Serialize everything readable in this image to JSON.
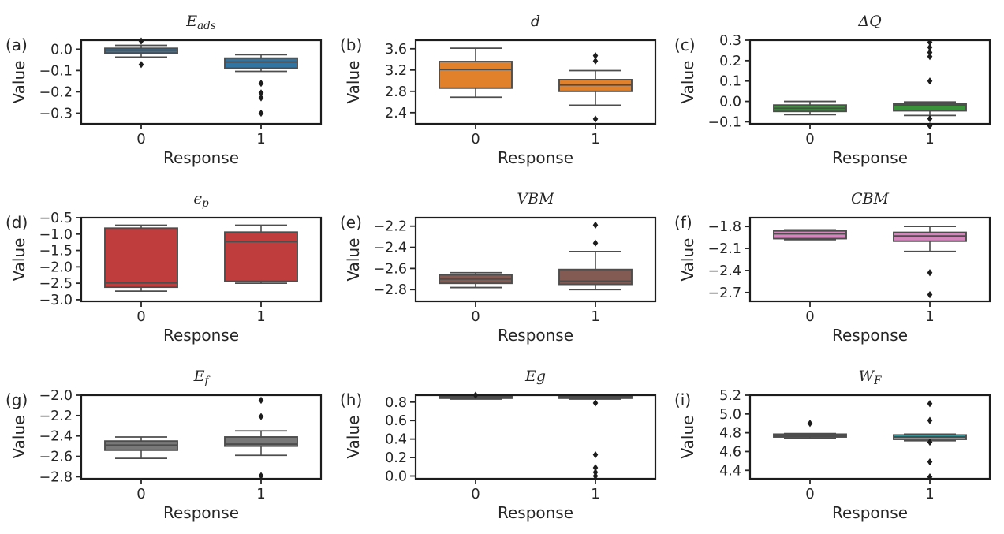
{
  "figure": {
    "ylabel": "Value",
    "xlabel": "Response",
    "categories": [
      "0",
      "1"
    ],
    "colors": {
      "spine": "#1c1c1c",
      "tick": "#262626",
      "box_edge": "#4d4d4d",
      "whisker": "#4d4d4d",
      "outlier": "#1c1c1c",
      "background": "#ffffff"
    }
  },
  "chart_data": [
    {
      "type": "box",
      "panel": "(a)",
      "title": {
        "main": "E",
        "sub": "ads"
      },
      "color": "#3274a1",
      "ylim": [
        -0.35,
        0.042
      ],
      "yticks": [
        0.0,
        -0.1,
        -0.2,
        -0.3
      ],
      "ytick_labels": [
        "0.0",
        "−0.1",
        "−0.2",
        "−0.3"
      ],
      "boxes": [
        {
          "category": "0",
          "whisker_low": -0.037,
          "q1": -0.018,
          "median": -0.005,
          "q3": 0.004,
          "whisker_high": 0.018,
          "outliers": [
            0.038,
            -0.072
          ]
        },
        {
          "category": "1",
          "whisker_low": -0.104,
          "q1": -0.089,
          "median": -0.06,
          "q3": -0.042,
          "whisker_high": -0.026,
          "outliers": [
            -0.16,
            -0.205,
            -0.228,
            -0.3
          ]
        }
      ]
    },
    {
      "type": "box",
      "panel": "(b)",
      "title": {
        "main": "d",
        "sub": ""
      },
      "color": "#e1812c",
      "ylim": [
        2.19,
        3.76
      ],
      "yticks": [
        3.6,
        3.2,
        2.8,
        2.4
      ],
      "ytick_labels": [
        "3.6",
        "3.2",
        "2.8",
        "2.4"
      ],
      "boxes": [
        {
          "category": "0",
          "whisker_low": 2.69,
          "q1": 2.86,
          "median": 3.21,
          "q3": 3.36,
          "whisker_high": 3.61,
          "outliers": []
        },
        {
          "category": "1",
          "whisker_low": 2.54,
          "q1": 2.8,
          "median": 2.92,
          "q3": 3.02,
          "whisker_high": 3.19,
          "outliers": [
            3.47,
            3.37,
            2.28
          ]
        }
      ]
    },
    {
      "type": "box",
      "panel": "(c)",
      "title": {
        "main": "ΔQ",
        "sub": ""
      },
      "color": "#3a923a",
      "ylim": [
        -0.11,
        0.3
      ],
      "yticks": [
        0.3,
        0.2,
        0.1,
        0.0,
        -0.1
      ],
      "ytick_labels": [
        "0.3",
        "0.2",
        "0.1",
        "0.0",
        "−0.1"
      ],
      "boxes": [
        {
          "category": "0",
          "whisker_low": -0.065,
          "q1": -0.049,
          "median": -0.034,
          "q3": -0.018,
          "whisker_high": 0.0,
          "outliers": []
        },
        {
          "category": "1",
          "whisker_low": -0.069,
          "q1": -0.046,
          "median": -0.018,
          "q3": -0.011,
          "whisker_high": -0.003,
          "outliers": [
            0.29,
            0.265,
            0.24,
            0.22,
            0.1,
            -0.085,
            -0.12
          ]
        }
      ]
    },
    {
      "type": "box",
      "panel": "(d)",
      "title": {
        "main": "ϵ",
        "sub": "p"
      },
      "color": "#c03d3e",
      "ylim": [
        -3.05,
        -0.5
      ],
      "yticks": [
        -0.5,
        -1.0,
        -1.5,
        -2.0,
        -2.5,
        -3.0
      ],
      "ytick_labels": [
        "−0.5",
        "−1.0",
        "−1.5",
        "−2.0",
        "−2.5",
        "−3.0"
      ],
      "boxes": [
        {
          "category": "0",
          "whisker_low": -2.74,
          "q1": -2.62,
          "median": -2.49,
          "q3": -0.82,
          "whisker_high": -0.73,
          "outliers": []
        },
        {
          "category": "1",
          "whisker_low": -2.5,
          "q1": -2.44,
          "median": -1.23,
          "q3": -0.94,
          "whisker_high": -0.73,
          "outliers": []
        }
      ]
    },
    {
      "type": "box",
      "panel": "(e)",
      "title": {
        "main": "VBM",
        "sub": ""
      },
      "color": "#845b53",
      "ylim": [
        -2.91,
        -2.12
      ],
      "yticks": [
        -2.2,
        -2.4,
        -2.6,
        -2.8
      ],
      "ytick_labels": [
        "−2.2",
        "−2.4",
        "−2.6",
        "−2.8"
      ],
      "boxes": [
        {
          "category": "0",
          "whisker_low": -2.78,
          "q1": -2.74,
          "median": -2.7,
          "q3": -2.66,
          "whisker_high": -2.64,
          "outliers": []
        },
        {
          "category": "1",
          "whisker_low": -2.8,
          "q1": -2.75,
          "median": -2.72,
          "q3": -2.61,
          "whisker_high": -2.44,
          "outliers": [
            -2.19,
            -2.36
          ]
        }
      ]
    },
    {
      "type": "box",
      "panel": "(f)",
      "title": {
        "main": "CBM",
        "sub": ""
      },
      "color": "#d684bd",
      "ylim": [
        -2.82,
        -1.68
      ],
      "yticks": [
        -1.8,
        -2.1,
        -2.4,
        -2.7
      ],
      "ytick_labels": [
        "−1.8",
        "−2.1",
        "−2.4",
        "−2.7"
      ],
      "boxes": [
        {
          "category": "0",
          "whisker_low": -1.98,
          "q1": -1.965,
          "median": -1.9,
          "q3": -1.86,
          "whisker_high": -1.845,
          "outliers": []
        },
        {
          "category": "1",
          "whisker_low": -2.14,
          "q1": -2.0,
          "median": -1.93,
          "q3": -1.88,
          "whisker_high": -1.8,
          "outliers": [
            -2.43,
            -2.73
          ]
        }
      ]
    },
    {
      "type": "box",
      "panel": "(g)",
      "title": {
        "main": "E",
        "sub": "f"
      },
      "color": "#797979",
      "ylim": [
        -2.82,
        -2.0
      ],
      "yticks": [
        -2.0,
        -2.2,
        -2.4,
        -2.6,
        -2.8
      ],
      "ytick_labels": [
        "−2.0",
        "−2.2",
        "−2.4",
        "−2.6",
        "−2.8"
      ],
      "boxes": [
        {
          "category": "0",
          "whisker_low": -2.62,
          "q1": -2.54,
          "median": -2.49,
          "q3": -2.45,
          "whisker_high": -2.41,
          "outliers": []
        },
        {
          "category": "1",
          "whisker_low": -2.59,
          "q1": -2.5,
          "median": -2.48,
          "q3": -2.41,
          "whisker_high": -2.35,
          "outliers": [
            -2.05,
            -2.21,
            -2.79
          ]
        }
      ]
    },
    {
      "type": "box",
      "panel": "(h)",
      "title": {
        "main": "Eg",
        "sub": ""
      },
      "color": "#b9bc6d",
      "ylim": [
        -0.03,
        0.875
      ],
      "yticks": [
        0.8,
        0.6,
        0.4,
        0.2,
        0.0
      ],
      "ytick_labels": [
        "0.8",
        "0.6",
        "0.4",
        "0.2",
        "0.0"
      ],
      "boxes": [
        {
          "category": "0",
          "whisker_low": 0.832,
          "q1": 0.842,
          "median": 0.856,
          "q3": 0.868,
          "whisker_high": 0.872,
          "outliers": [
            0.875
          ]
        },
        {
          "category": "1",
          "whisker_low": 0.832,
          "q1": 0.842,
          "median": 0.856,
          "q3": 0.868,
          "whisker_high": 0.872,
          "outliers": [
            0.79,
            0.23,
            0.09,
            0.04,
            0.0
          ]
        }
      ]
    },
    {
      "type": "box",
      "panel": "(i)",
      "title": {
        "main": "W",
        "sub": "F"
      },
      "color": "#31b7bc",
      "ylim": [
        4.31,
        5.2
      ],
      "yticks": [
        5.2,
        5.0,
        4.8,
        4.6,
        4.4
      ],
      "ytick_labels": [
        "5.2",
        "5.0",
        "4.8",
        "4.6",
        "4.4"
      ],
      "boxes": [
        {
          "category": "0",
          "whisker_low": 4.74,
          "q1": 4.755,
          "median": 4.768,
          "q3": 4.785,
          "whisker_high": 4.792,
          "outliers": [
            4.9
          ]
        },
        {
          "category": "1",
          "whisker_low": 4.715,
          "q1": 4.73,
          "median": 4.755,
          "q3": 4.777,
          "whisker_high": 4.785,
          "outliers": [
            5.11,
            4.93,
            4.7,
            4.49,
            4.33
          ]
        }
      ]
    }
  ]
}
